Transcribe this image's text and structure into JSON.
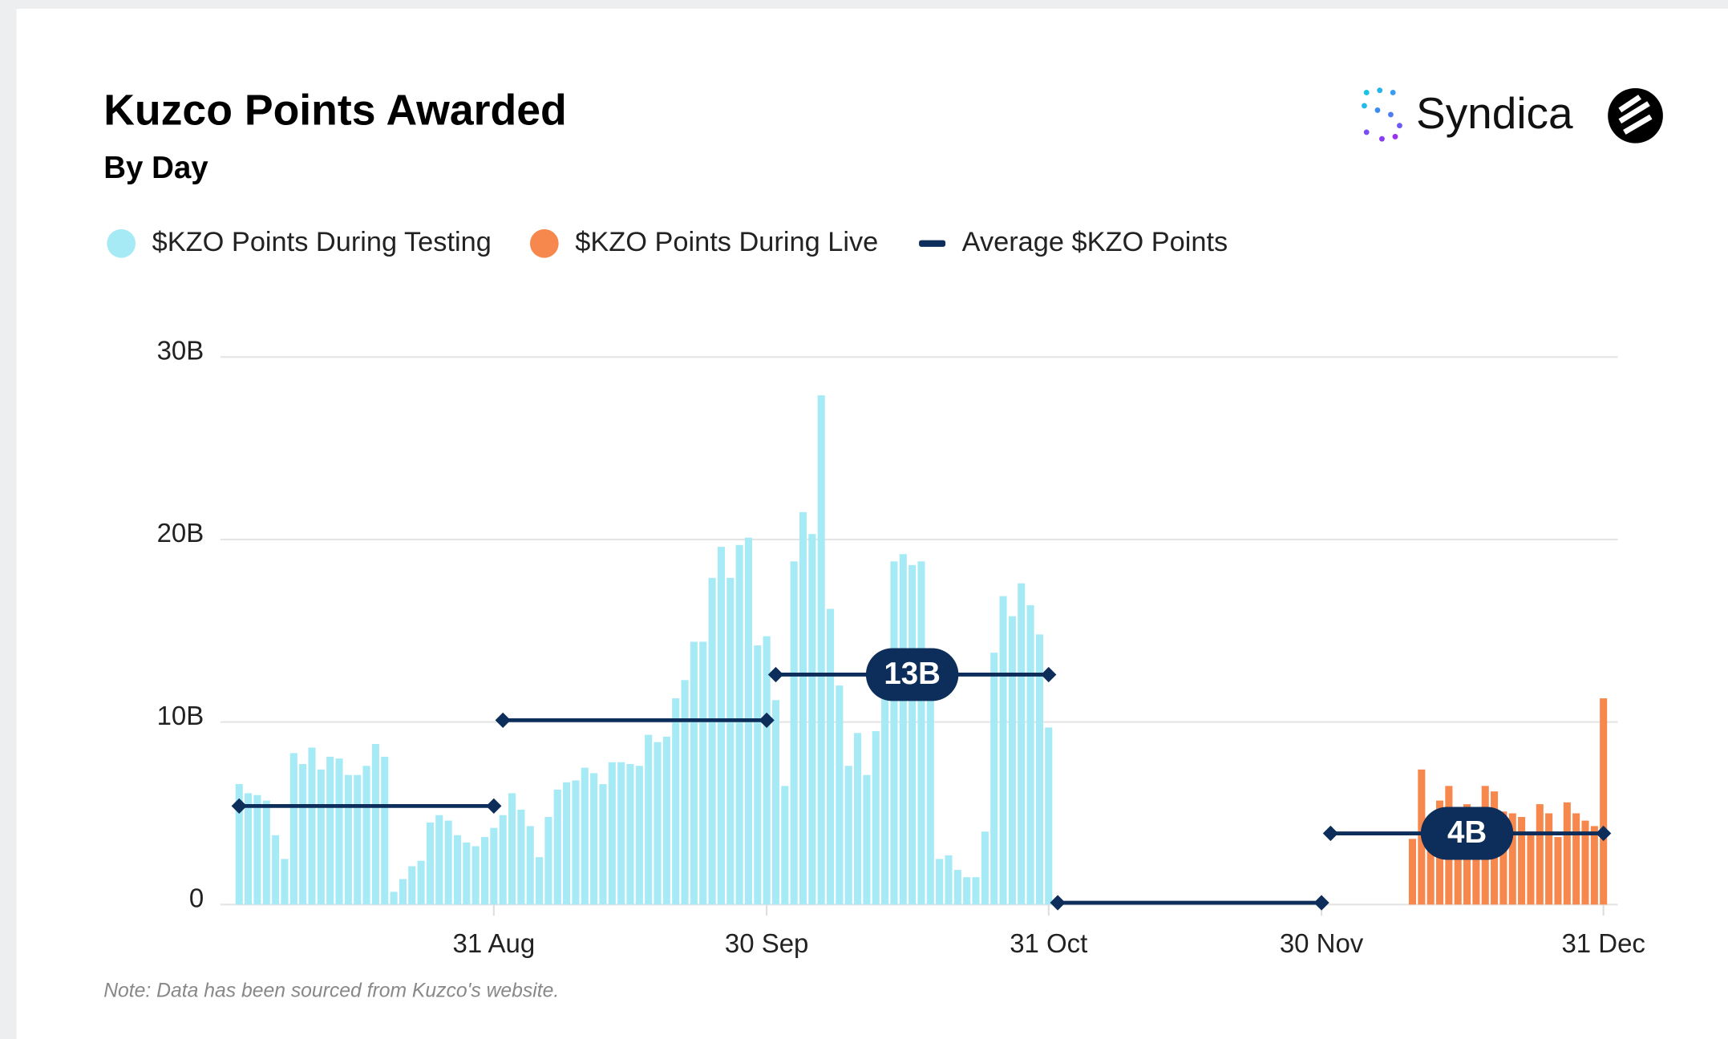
{
  "chart_data": {
    "type": "bar",
    "brand": "Syndica",
    "title": "Kuzco Points Awarded",
    "subtitle": "By Day",
    "note": "Note: Data has been sourced from Kuzco's website.",
    "categories": [
      null,
      null,
      null,
      null,
      null,
      null,
      null,
      null,
      null,
      null,
      null,
      null,
      null,
      null,
      null,
      null,
      null,
      null,
      null,
      null,
      null,
      null,
      null,
      null,
      null,
      null,
      null,
      null,
      "31 Aug",
      null,
      null,
      null,
      null,
      null,
      null,
      null,
      null,
      null,
      null,
      null,
      null,
      null,
      null,
      null,
      null,
      null,
      null,
      null,
      null,
      null,
      null,
      null,
      null,
      null,
      null,
      null,
      null,
      null,
      "30 Sep",
      null,
      null,
      null,
      null,
      null,
      null,
      null,
      null,
      null,
      null,
      null,
      null,
      null,
      null,
      null,
      null,
      null,
      null,
      null,
      null,
      null,
      null,
      null,
      null,
      null,
      null,
      null,
      null,
      null,
      null,
      "31 Oct",
      null,
      null,
      null,
      null,
      null,
      null,
      null,
      null,
      null,
      null,
      null,
      null,
      null,
      null,
      null,
      null,
      null,
      null,
      null,
      null,
      null,
      null,
      null,
      null,
      null,
      null,
      null,
      null,
      null,
      "30 Nov",
      null,
      null,
      null,
      null,
      null,
      null,
      null,
      null,
      null,
      null,
      null,
      null,
      null,
      null,
      null,
      null,
      null,
      null,
      null,
      null,
      null,
      null,
      null,
      null,
      null,
      null,
      null,
      null,
      null,
      null,
      "31 Dec"
    ],
    "series": [
      {
        "name": "$KZO Points During Testing",
        "color": "#a6eaf6",
        "values": [
          6.6,
          6.1,
          6.0,
          5.7,
          3.8,
          2.5,
          8.3,
          7.7,
          8.6,
          7.4,
          8.1,
          8.0,
          7.1,
          7.1,
          7.6,
          8.8,
          8.1,
          0.7,
          1.4,
          2.1,
          2.4,
          4.5,
          4.9,
          4.6,
          3.8,
          3.4,
          3.2,
          3.7,
          4.2,
          4.9,
          6.1,
          5.2,
          4.3,
          2.6,
          4.8,
          6.3,
          6.7,
          6.8,
          7.5,
          7.2,
          6.6,
          7.8,
          7.8,
          7.7,
          7.6,
          9.3,
          8.9,
          9.2,
          11.3,
          12.3,
          14.4,
          14.4,
          17.9,
          19.6,
          17.9,
          19.7,
          20.1,
          14.2,
          14.7,
          11.2,
          6.5,
          18.8,
          21.5,
          20.3,
          27.9,
          16.2,
          12.0,
          7.6,
          9.4,
          7.1,
          9.5,
          11.5,
          18.8,
          19.2,
          18.6,
          18.8,
          12.1,
          2.5,
          2.7,
          1.9,
          1.5,
          1.5,
          4.0,
          13.8,
          16.9,
          15.8,
          17.6,
          16.4,
          14.8,
          9.7,
          null,
          null,
          null,
          null,
          null,
          null,
          null,
          null,
          null,
          null,
          null,
          null,
          null,
          null,
          null,
          null,
          null,
          null,
          null,
          null,
          null,
          null,
          null,
          null,
          null,
          null,
          null,
          null,
          null,
          null,
          null,
          null,
          null,
          null,
          null,
          null,
          null,
          null,
          null,
          null,
          null,
          null,
          null,
          null,
          null,
          null,
          null,
          null,
          null,
          null,
          null,
          null,
          null,
          null,
          null,
          null,
          null,
          null,
          null,
          null,
          null
        ]
      },
      {
        "name": "$KZO Points During Live",
        "color": "#f7884d",
        "values": [
          null,
          null,
          null,
          null,
          null,
          null,
          null,
          null,
          null,
          null,
          null,
          null,
          null,
          null,
          null,
          null,
          null,
          null,
          null,
          null,
          null,
          null,
          null,
          null,
          null,
          null,
          null,
          null,
          null,
          null,
          null,
          null,
          null,
          null,
          null,
          null,
          null,
          null,
          null,
          null,
          null,
          null,
          null,
          null,
          null,
          null,
          null,
          null,
          null,
          null,
          null,
          null,
          null,
          null,
          null,
          null,
          null,
          null,
          null,
          null,
          null,
          null,
          null,
          null,
          null,
          null,
          null,
          null,
          null,
          null,
          null,
          null,
          null,
          null,
          null,
          null,
          null,
          null,
          null,
          null,
          null,
          null,
          null,
          null,
          null,
          null,
          null,
          null,
          null,
          null,
          null,
          null,
          null,
          null,
          null,
          null,
          null,
          null,
          null,
          null,
          null,
          null,
          null,
          null,
          null,
          null,
          null,
          null,
          null,
          null,
          null,
          null,
          null,
          null,
          null,
          null,
          null,
          null,
          null,
          null,
          null,
          null,
          null,
          null,
          null,
          null,
          null,
          null,
          null,
          3.6,
          7.4,
          3.0,
          5.7,
          6.5,
          5.0,
          5.5,
          5.0,
          6.5,
          6.2,
          5.1,
          5.0,
          4.8,
          4.0,
          5.5,
          5.0,
          3.7,
          5.6,
          5.0,
          4.6,
          4.3,
          11.3
        ]
      },
      {
        "name": "Average $KZO Points",
        "type": "line",
        "color": "#0d2d5a",
        "values": [
          5.4,
          5.4,
          5.4,
          5.4,
          5.4,
          5.4,
          5.4,
          5.4,
          5.4,
          5.4,
          5.4,
          5.4,
          5.4,
          5.4,
          5.4,
          5.4,
          5.4,
          5.4,
          5.4,
          5.4,
          5.4,
          5.4,
          5.4,
          5.4,
          5.4,
          5.4,
          5.4,
          5.4,
          5.4,
          10.1,
          10.1,
          10.1,
          10.1,
          10.1,
          10.1,
          10.1,
          10.1,
          10.1,
          10.1,
          10.1,
          10.1,
          10.1,
          10.1,
          10.1,
          10.1,
          10.1,
          10.1,
          10.1,
          10.1,
          10.1,
          10.1,
          10.1,
          10.1,
          10.1,
          10.1,
          10.1,
          10.1,
          10.1,
          10.1,
          12.6,
          12.6,
          12.6,
          12.6,
          12.6,
          12.6,
          12.6,
          12.6,
          12.6,
          12.6,
          12.6,
          12.6,
          12.6,
          12.6,
          12.6,
          12.6,
          12.6,
          12.6,
          12.6,
          12.6,
          12.6,
          12.6,
          12.6,
          12.6,
          12.6,
          12.6,
          12.6,
          12.6,
          12.6,
          12.6,
          12.6,
          0.1,
          0.1,
          0.1,
          0.1,
          0.1,
          0.1,
          0.1,
          0.1,
          0.1,
          0.1,
          0.1,
          0.1,
          0.1,
          0.1,
          0.1,
          0.1,
          0.1,
          0.1,
          0.1,
          0.1,
          0.1,
          0.1,
          0.1,
          0.1,
          0.1,
          0.1,
          0.1,
          0.1,
          0.1,
          0.1,
          3.9,
          3.9,
          3.9,
          3.9,
          3.9,
          3.9,
          3.9,
          3.9,
          3.9,
          3.9,
          3.9,
          3.9,
          3.9,
          3.9,
          3.9,
          3.9,
          3.9,
          3.9,
          3.9,
          3.9,
          3.9,
          3.9,
          3.9,
          3.9,
          3.9,
          3.9,
          3.9,
          3.9,
          3.9,
          3.9,
          3.9
        ],
        "value_labels": [
          null,
          null,
          null,
          null,
          null,
          null,
          null,
          null,
          null,
          null,
          null,
          null,
          null,
          null,
          null,
          null,
          null,
          null,
          null,
          null,
          null,
          null,
          null,
          null,
          null,
          null,
          null,
          null,
          null,
          null,
          null,
          null,
          null,
          null,
          null,
          null,
          null,
          null,
          null,
          null,
          null,
          null,
          null,
          null,
          null,
          null,
          null,
          null,
          null,
          null,
          null,
          null,
          null,
          null,
          null,
          null,
          null,
          null,
          null,
          null,
          null,
          null,
          null,
          null,
          null,
          null,
          null,
          null,
          null,
          null,
          null,
          null,
          null,
          null,
          "13B",
          null,
          null,
          null,
          null,
          null,
          null,
          null,
          null,
          null,
          null,
          null,
          null,
          null,
          null,
          null,
          null,
          null,
          null,
          null,
          null,
          null,
          null,
          null,
          null,
          null,
          null,
          null,
          null,
          null,
          null,
          null,
          null,
          null,
          null,
          null,
          null,
          null,
          null,
          null,
          null,
          null,
          null,
          null,
          null,
          null,
          null,
          null,
          null,
          null,
          null,
          null,
          null,
          null,
          null,
          null,
          null,
          null,
          null,
          null,
          null,
          "4B",
          null,
          null,
          null,
          null,
          null,
          null,
          null,
          null,
          null,
          null,
          null,
          null,
          null,
          null,
          null
        ]
      }
    ],
    "ylim": [
      0,
      30
    ],
    "yticks": [
      0,
      {
        "value": 10,
        "label": "10B"
      },
      {
        "value": 20,
        "label": "20B"
      },
      {
        "value": 30,
        "label": "30B"
      }
    ],
    "grid": true
  }
}
